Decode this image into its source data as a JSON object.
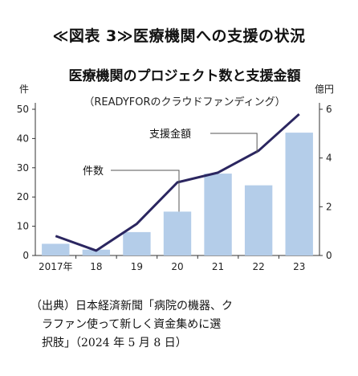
{
  "figure_title": "≪図表 3≫医療機関への支援の状況",
  "source": {
    "line1": "（出典）日本経済新聞「病院の機器、ク",
    "line2": "ラファン使って新しく資金集めに選",
    "line3": "択肢」（2024 年 5 月 8 日）"
  },
  "chart_data": {
    "type": "bar",
    "title": "医療機関のプロジェクト数と支援金額",
    "subtitle": "（READYFORのクラウドファンディング）",
    "categories": [
      "2017年",
      "18",
      "19",
      "20",
      "21",
      "22",
      "23"
    ],
    "series": [
      {
        "name": "件数",
        "type": "bar",
        "axis": "left",
        "color": "#b4cde9",
        "values": [
          4,
          2,
          8,
          15,
          28,
          24,
          42
        ]
      },
      {
        "name": "支援金額",
        "type": "line",
        "axis": "right",
        "color": "#2b2660",
        "values": [
          0.8,
          0.2,
          1.3,
          3.0,
          3.4,
          4.3,
          5.8
        ]
      }
    ],
    "y_left": {
      "label": "件",
      "ylim": [
        0,
        50
      ],
      "ticks": [
        0,
        10,
        20,
        30,
        40,
        50
      ]
    },
    "y_right": {
      "label": "億円",
      "ylim": [
        0,
        6
      ],
      "ticks": [
        0,
        2,
        4,
        6
      ]
    }
  }
}
